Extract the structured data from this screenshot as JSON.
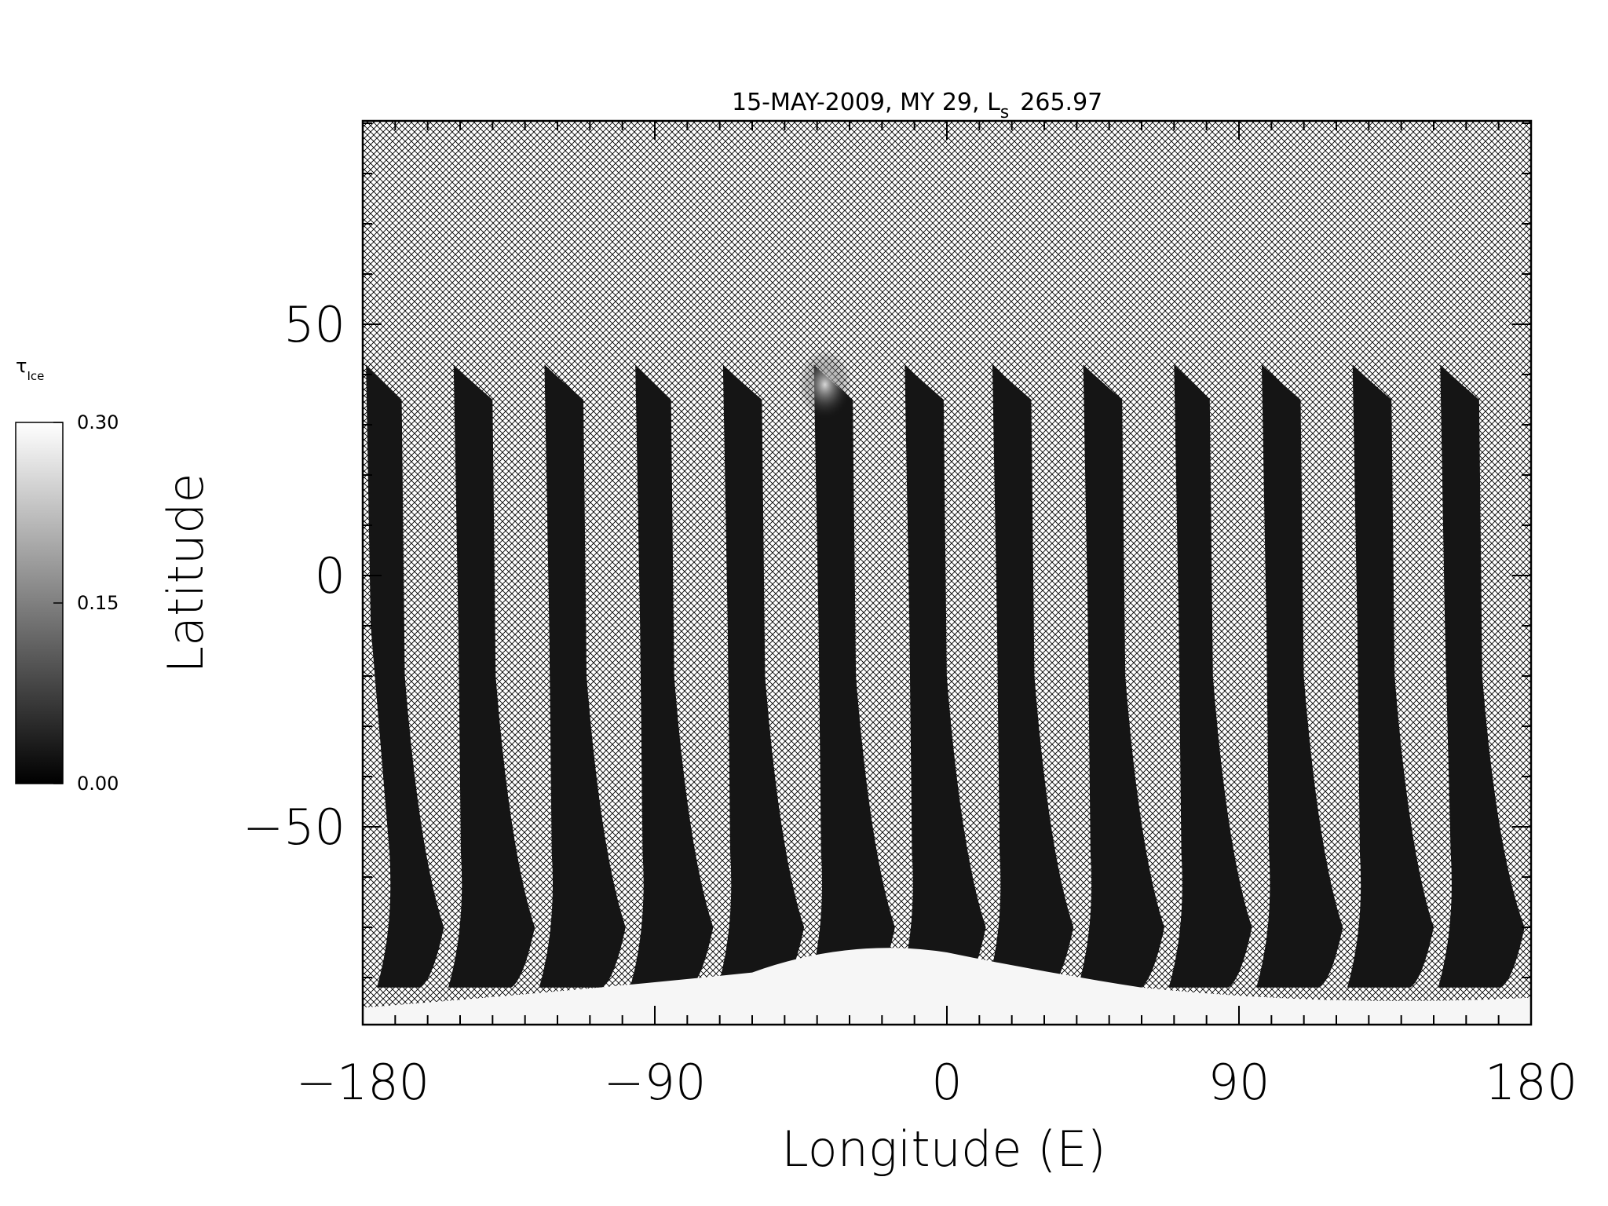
{
  "chart_data": {
    "type": "heatmap",
    "title": "15-MAY-2009, MY 29,  L",
    "title_sub": "s",
    "title_value": "265.97",
    "xlabel": "Longitude (E)",
    "ylabel": "Latitude",
    "xlim": [
      -180,
      180
    ],
    "ylim": [
      -90,
      90
    ],
    "x_ticks": [
      -180,
      -90,
      0,
      90,
      180
    ],
    "x_tick_labels": [
      "−180",
      "−90",
      "0",
      "90",
      "180"
    ],
    "y_ticks": [
      -50,
      0,
      50
    ],
    "y_tick_labels": [
      "−50",
      "0",
      "50"
    ],
    "x_minor_step": 10,
    "y_minor_step": 10,
    "colorbar": {
      "label": "τ",
      "label_sub": "Ice",
      "min": 0.0,
      "max": 0.3,
      "ticks": [
        "0.00",
        "0.15",
        "0.30"
      ],
      "colormap": "grayscale (black = 0.00, white = 0.30)"
    },
    "no_data_fill": "cross-hatch",
    "swaths": [
      {
        "lon_top_left": -179,
        "lon_top_right": -168,
        "lon_bottom_left": -180,
        "lon_bottom_right": -155,
        "lat_top": 42,
        "lat_bottom": -82
      },
      {
        "lon_top_left": -152,
        "lon_top_right": -140,
        "lon_bottom_left": -158,
        "lon_bottom_right": -127,
        "lat_top": 42,
        "lat_bottom": -82
      },
      {
        "lon_top_left": -124,
        "lon_top_right": -112,
        "lon_bottom_left": -130,
        "lon_bottom_right": -99,
        "lat_top": 42,
        "lat_bottom": -82
      },
      {
        "lon_top_left": -96,
        "lon_top_right": -85,
        "lon_bottom_left": -102,
        "lon_bottom_right": -72,
        "lat_top": 42,
        "lat_bottom": -82
      },
      {
        "lon_top_left": -69,
        "lon_top_right": -57,
        "lon_bottom_left": -75,
        "lon_bottom_right": -44,
        "lat_top": 42,
        "lat_bottom": -82
      },
      {
        "lon_top_left": -41,
        "lon_top_right": -29,
        "lon_bottom_left": -47,
        "lon_bottom_right": -16,
        "lat_top": 42,
        "lat_bottom": -82
      },
      {
        "lon_top_left": -13,
        "lon_top_right": -1,
        "lon_bottom_left": -19,
        "lon_bottom_right": 12,
        "lat_top": 42,
        "lat_bottom": -82
      },
      {
        "lon_top_left": 14,
        "lon_top_right": 26,
        "lon_bottom_left": 8,
        "lon_bottom_right": 39,
        "lat_top": 42,
        "lat_bottom": -82
      },
      {
        "lon_top_left": 42,
        "lon_top_right": 54,
        "lon_bottom_left": 36,
        "lon_bottom_right": 67,
        "lat_top": 42,
        "lat_bottom": -82
      },
      {
        "lon_top_left": 70,
        "lon_top_right": 81,
        "lon_bottom_left": 64,
        "lon_bottom_right": 94,
        "lat_top": 42,
        "lat_bottom": -82
      },
      {
        "lon_top_left": 97,
        "lon_top_right": 109,
        "lon_bottom_left": 91,
        "lon_bottom_right": 122,
        "lat_top": 42,
        "lat_bottom": -82
      },
      {
        "lon_top_left": 125,
        "lon_top_right": 137,
        "lon_bottom_left": 119,
        "lon_bottom_right": 150,
        "lat_top": 42,
        "lat_bottom": -82
      },
      {
        "lon_top_left": 152,
        "lon_top_right": 164,
        "lon_bottom_left": 147,
        "lon_bottom_right": 178,
        "lat_top": 42,
        "lat_bottom": -82
      }
    ],
    "high_values": [
      {
        "region": "south polar cap",
        "lat_range": [
          -90,
          -72
        ],
        "tau_ice": 0.3
      },
      {
        "region": "bright patch near 35E lon -40, lat 38",
        "lon": -40,
        "lat": 38,
        "tau_ice": 0.3
      }
    ]
  }
}
